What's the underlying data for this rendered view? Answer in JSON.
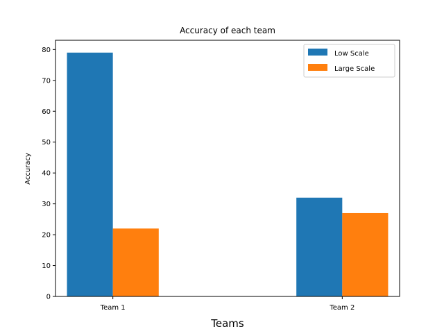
{
  "chart_data": {
    "type": "bar",
    "title": "Accuracy of each team",
    "xlabel": "Teams",
    "ylabel": "Accuracy",
    "categories": [
      "Team 1",
      "Team 2"
    ],
    "series": [
      {
        "name": "Low Scale",
        "values": [
          79,
          32
        ],
        "color": "#1f77b4"
      },
      {
        "name": "Large Scale",
        "values": [
          22,
          27
        ],
        "color": "#ff7f0e"
      }
    ],
    "ylim": [
      0,
      83
    ],
    "yticks": [
      0,
      10,
      20,
      30,
      40,
      50,
      60,
      70,
      80
    ],
    "grid": false,
    "legend_position": "top-right"
  }
}
